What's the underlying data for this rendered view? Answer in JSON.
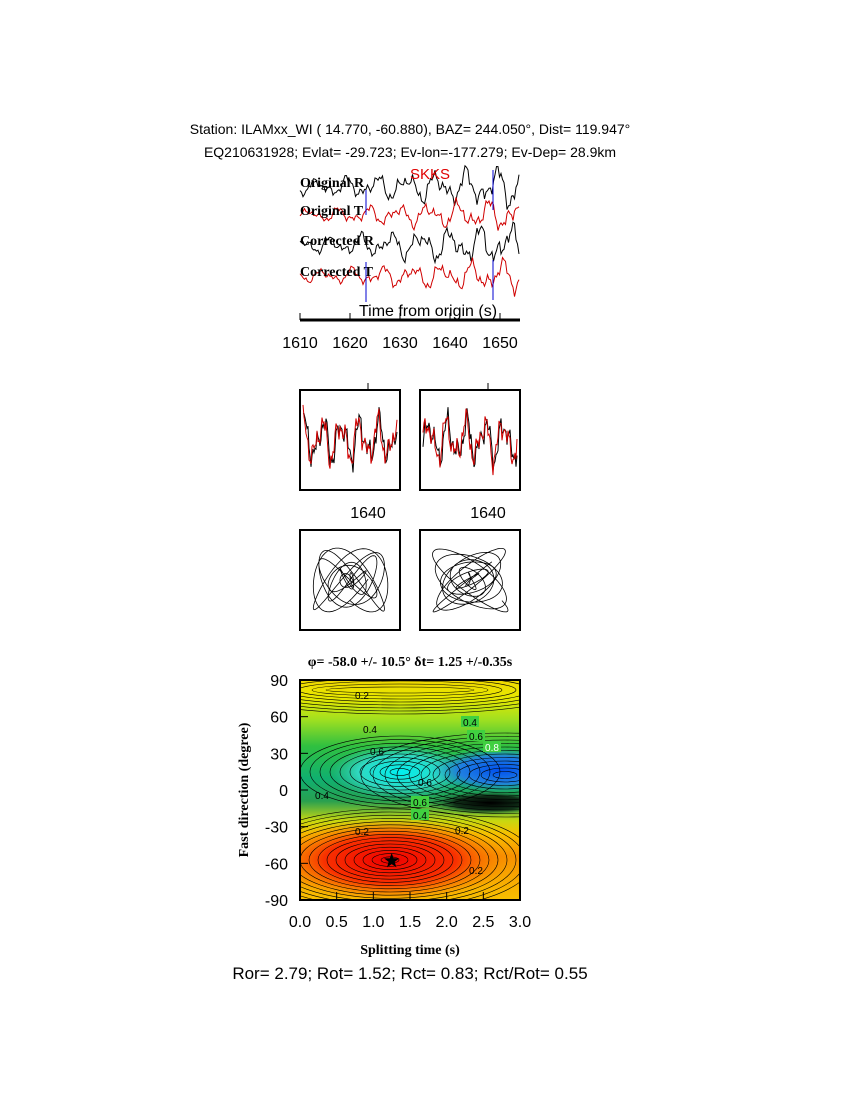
{
  "header": {
    "line1": "Station: ILAMxx_WI (  14.770,  -60.880), BAZ=  244.050°, Dist=  119.947°",
    "line2": "EQ210631928; Evlat= -29.723; Ev-lon=-177.279; Ev-Dep= 28.9km"
  },
  "traces": {
    "labels": [
      "Original R",
      "Original T",
      "Corrected R",
      "Corrected T"
    ],
    "phase": "SKKS",
    "axis_label": "Time from origin (s)",
    "xlim": [
      1610,
      1654
    ],
    "xticks": [
      1610,
      1620,
      1630,
      1640,
      1650
    ]
  },
  "panels": {
    "xticks": [
      1640,
      1640
    ]
  },
  "chart_data": {
    "type": "contour",
    "title": "φ= -58.0 +/- 10.5° δt= 1.25 +/-0.35s",
    "x_label": "Splitting time (s)",
    "y_label": "Fast direction (degree)",
    "xlim": [
      0,
      3
    ],
    "ylim": [
      -90,
      90
    ],
    "xticks": [
      {
        "value": 0,
        "label": "0.0"
      },
      {
        "value": 0.5,
        "label": "0.5"
      },
      {
        "value": 1,
        "label": "1.0"
      },
      {
        "value": 1.5,
        "label": "1.5"
      },
      {
        "value": 2,
        "label": "2.0"
      },
      {
        "value": 2.5,
        "label": "2.5"
      },
      {
        "value": 3,
        "label": "3.0"
      }
    ],
    "yticks": [
      -90,
      -60,
      -30,
      0,
      30,
      60,
      90
    ],
    "point": {
      "x": 1.25,
      "y": -58
    },
    "contour_labels": [
      0.2,
      0.4,
      0.6,
      0.4,
      0.6,
      0.8,
      0.6,
      0.4,
      0.2,
      0.2,
      0.2,
      0.4,
      0.6
    ]
  },
  "footer": "Ror= 2.79; Rot= 1.52; Rct= 0.83; Rct/Rot= 0.55"
}
